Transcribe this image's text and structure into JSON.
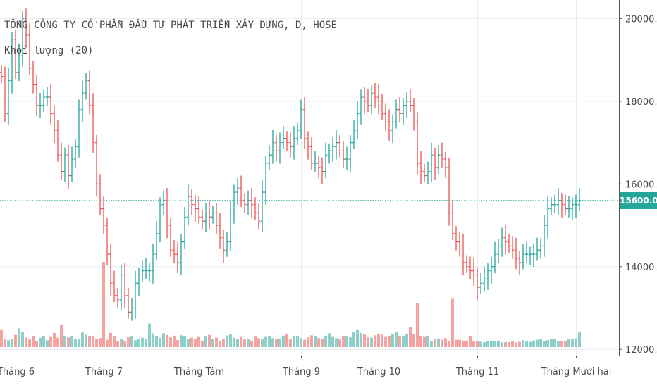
{
  "chart_data": {
    "type": "ohlc",
    "title": "TỔNG CÔNG TY CỔ PHẦN ĐẦU TƯ PHÁT TRIỂN XÂY DỰNG, D, HOSE",
    "subtitle": "Khối lượng (20)",
    "last_price_label": "15600.0",
    "last_price": 15600,
    "ylim": [
      11850,
      20450
    ],
    "y_ticks": [
      {
        "value": 20000,
        "label": "20000.0"
      },
      {
        "value": 18000,
        "label": "18000.0"
      },
      {
        "value": 16000,
        "label": "16000.0"
      },
      {
        "value": 14000,
        "label": "14000.0"
      },
      {
        "value": 12000,
        "label": "12000.0"
      }
    ],
    "x_ticks": [
      "Tháng 6",
      "Tháng 7",
      "Tháng Tám",
      "Tháng 9",
      "Tháng 10",
      "Tháng 11",
      "Tháng Mười hai"
    ],
    "colors": {
      "up": "#26a69a",
      "down": "#ef5350",
      "vol_up": "#8fcfc9",
      "vol_down": "#f5a3a1",
      "grid": "#e6ecf2",
      "axis_text": "#4a4a4a"
    },
    "closes": [
      18600,
      17700,
      18500,
      19500,
      18700,
      19100,
      20000,
      19600,
      18800,
      18400,
      17900,
      17900,
      18100,
      18100,
      17700,
      17300,
      16700,
      16300,
      16700,
      16200,
      16600,
      16900,
      17800,
      18200,
      18500,
      17900,
      17000,
      16000,
      15400,
      15000,
      14300,
      13600,
      13300,
      13200,
      13800,
      13300,
      12900,
      13000,
      13600,
      13800,
      13900,
      13900,
      13900,
      14300,
      14800,
      15500,
      15600,
      15000,
      14400,
      14300,
      14100,
      14600,
      15200,
      15700,
      15500,
      15400,
      15200,
      15100,
      15300,
      15200,
      15300,
      15000,
      14700,
      14400,
      14600,
      15300,
      15800,
      15900,
      15600,
      15500,
      15600,
      15500,
      15300,
      15100,
      15800,
      16500,
      16700,
      17000,
      16800,
      17000,
      17100,
      17000,
      16900,
      17100,
      17300,
      17800,
      17100,
      16900,
      16500,
      16500,
      16400,
      16300,
      16700,
      16800,
      16900,
      17000,
      16800,
      16600,
      16600,
      17000,
      17300,
      17700,
      18100,
      18000,
      17900,
      18200,
      18100,
      18000,
      17700,
      17500,
      17300,
      17500,
      17800,
      17700,
      17900,
      18000,
      17900,
      17500,
      16500,
      16300,
      16200,
      16300,
      16700,
      16400,
      16700,
      16600,
      16400,
      15300,
      14800,
      14600,
      14500,
      14100,
      14000,
      13900,
      13800,
      13500,
      13600,
      13700,
      13900,
      14000,
      14300,
      14500,
      14700,
      14600,
      14500,
      14400,
      14200,
      14100,
      14300,
      14300,
      14300,
      14300,
      14400,
      14500,
      15000,
      15400,
      15500,
      15500,
      15600,
      15500,
      15400,
      15400,
      15500,
      15500,
      15600
    ],
    "volumes": [
      4200,
      2000,
      1700,
      2100,
      3000,
      4600,
      3800,
      2400,
      1900,
      2700,
      1500,
      2300,
      2800,
      1700,
      2500,
      3500,
      2300,
      5600,
      2600,
      2400,
      2700,
      1900,
      2100,
      3600,
      3100,
      2700,
      2600,
      2100,
      2200,
      21000,
      1800,
      3500,
      2800,
      1500,
      1900,
      1600,
      2400,
      2800,
      1700,
      2100,
      2300,
      2000,
      5800,
      3400,
      2700,
      2300,
      3400,
      3000,
      2400,
      2600,
      1700,
      2900,
      2700,
      2100,
      2300,
      2100,
      2500,
      1600,
      2700,
      3000,
      1900,
      2300,
      1600,
      2000,
      2900,
      3300,
      2300,
      2100,
      2500,
      2000,
      2100,
      1600,
      2700,
      2200,
      1900,
      2500,
      2800,
      2200,
      2000,
      2100,
      2700,
      3100,
      1900,
      2600,
      2800,
      2200,
      1800,
      2400,
      2900,
      2600,
      2200,
      2000,
      2700,
      3400,
      2500,
      2200,
      2000,
      2600,
      2600,
      2400,
      3700,
      4200,
      3500,
      3100,
      2400,
      2300,
      2900,
      3300,
      3100,
      2500,
      2700,
      3300,
      3700,
      2600,
      2600,
      3200,
      5000,
      3300,
      10800,
      2800,
      2500,
      2700,
      1500,
      2000,
      2100,
      1800,
      2200,
      1500,
      11900,
      1800,
      1800,
      1600,
      1600,
      2700,
      1500,
      1400,
      1300,
      1200,
      1400,
      1500,
      1400,
      1600,
      1200,
      1200,
      1200,
      1400,
      1100,
      1300,
      1700,
      1500,
      1300,
      1600,
      1800,
      1900,
      1400,
      1700,
      1900,
      2000,
      1500,
      1400,
      1600,
      2000,
      1900,
      2200,
      3600
    ]
  }
}
